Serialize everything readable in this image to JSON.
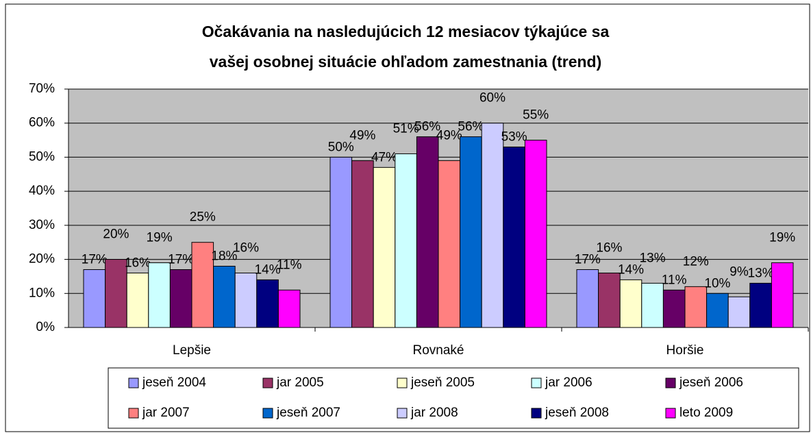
{
  "chart_data": {
    "type": "bar",
    "title": [
      "Očakávania na nasledujúcich 12 mesiacov týkajúce sa",
      "vašej osobnej situácie ohľadom zamestnania (trend)"
    ],
    "categories": [
      "Lepšie",
      "Rovnaké",
      "Horšie"
    ],
    "series": [
      {
        "name": "jeseň 2004",
        "color": "#9999ff",
        "values": [
          17,
          50,
          17
        ],
        "value_labels": [
          "17%",
          "50%",
          "17%"
        ]
      },
      {
        "name": "jar 2005",
        "color": "#993366",
        "values": [
          20,
          49,
          16
        ],
        "value_labels": [
          "20%",
          "49%",
          "16%"
        ]
      },
      {
        "name": "jeseň 2005",
        "color": "#ffffcc",
        "values": [
          16,
          47,
          14
        ],
        "value_labels": [
          "16%",
          "47%",
          "14%"
        ]
      },
      {
        "name": "jar 2006",
        "color": "#ccffff",
        "values": [
          19,
          51,
          13
        ],
        "value_labels": [
          "19%",
          "51%",
          "13%"
        ]
      },
      {
        "name": "jeseň 2006",
        "color": "#660066",
        "values": [
          17,
          56,
          11
        ],
        "value_labels": [
          "17%",
          "56%",
          "11%"
        ]
      },
      {
        "name": "jar 2007",
        "color": "#ff8080",
        "values": [
          25,
          49,
          12
        ],
        "value_labels": [
          "25%",
          "49%",
          "12%"
        ]
      },
      {
        "name": "jeseň 2007",
        "color": "#0066cc",
        "values": [
          18,
          56,
          10
        ],
        "value_labels": [
          "18%",
          "56%",
          "10%"
        ]
      },
      {
        "name": "jar 2008",
        "color": "#ccccff",
        "values": [
          16,
          60,
          9
        ],
        "value_labels": [
          "16%",
          "60%",
          "9%"
        ]
      },
      {
        "name": "jeseň 2008",
        "color": "#000080",
        "values": [
          14,
          53,
          13
        ],
        "value_labels": [
          "14%",
          "53%",
          "13%"
        ]
      },
      {
        "name": "leto 2009",
        "color": "#ff00ff",
        "values": [
          11,
          55,
          19
        ],
        "value_labels": [
          "11%",
          "55%",
          "19%"
        ]
      }
    ],
    "ylim": [
      0,
      70
    ],
    "yticks": [
      {
        "value": 0,
        "label": "0%"
      },
      {
        "value": 10,
        "label": "10%"
      },
      {
        "value": 20,
        "label": "20%"
      },
      {
        "value": 30,
        "label": "30%"
      },
      {
        "value": 40,
        "label": "40%"
      },
      {
        "value": 50,
        "label": "50%"
      },
      {
        "value": 60,
        "label": "60%"
      },
      {
        "value": 70,
        "label": "70%"
      }
    ],
    "grid": true,
    "legend": "bottom"
  }
}
